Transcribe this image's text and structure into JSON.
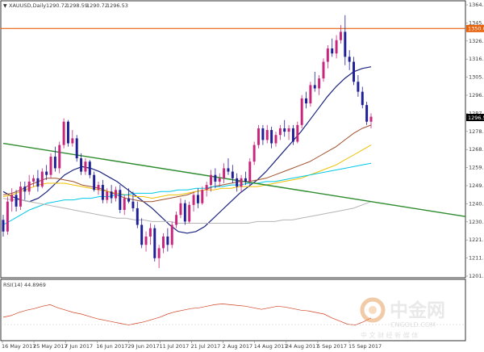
{
  "window": {
    "symbol_title": "XAUUSD,Daily",
    "ohlc": [
      "1290.72",
      "1298.59",
      "1290.72",
      "1296.53"
    ]
  },
  "indicator": {
    "label": "RSI(14) 44.8969"
  },
  "watermark": {
    "brand_text": "中金网",
    "domain_text": "CNGOLD.COM",
    "tagline_text": "中 文 财 经 新 媒 体"
  },
  "colors": {
    "up_candle": "#c8267d",
    "down_candle": "#1e1e96",
    "ma_dark_blue": "#1a237e",
    "ma_brown": "#a0522d",
    "ma_yellow": "#f0c000",
    "ma_cyan": "#00c8e6",
    "ma_grey": "#b4b4b4",
    "trend_green": "#2e8b2e",
    "resistance_orange": "#e8620c",
    "rsi_line": "#d04020"
  },
  "chart_data": {
    "type": "candlestick",
    "title": "XAUUSD,Daily",
    "price_axis": {
      "ticks": [
        "1364.70",
        "1345.35",
        "1326.00",
        "1316.95",
        "1305.80",
        "1296.53",
        "1287.80",
        "1278.65",
        "1268.50",
        "1259.60",
        "1249.30",
        "1240.45",
        "1230.55",
        "1221.40",
        "1211.40",
        "1201.70"
      ],
      "current_price_label": "1296.53",
      "resistance_label": "1350.00",
      "ylim": [
        1201.7,
        1364.7
      ]
    },
    "date_axis": {
      "labels": [
        "16 May 2017",
        "25 May 2017",
        "7 Jun 2017",
        "16 Jun 2017",
        "29 Jun 2017",
        "11 Jul 2017",
        "21 Jul 2017",
        "2 Aug 2017",
        "14 Aug 2017",
        "24 Aug 2017",
        "5 Sep 2017",
        "15 Sep 2017"
      ]
    },
    "candles_ohlc": [
      [
        1235,
        1238,
        1225,
        1228
      ],
      [
        1228,
        1249,
        1226,
        1246
      ],
      [
        1246,
        1254,
        1240,
        1250
      ],
      [
        1250,
        1253,
        1240,
        1243
      ],
      [
        1243,
        1258,
        1241,
        1255
      ],
      [
        1255,
        1258,
        1247,
        1252
      ],
      [
        1252,
        1262,
        1250,
        1258
      ],
      [
        1258,
        1262,
        1255,
        1260
      ],
      [
        1260,
        1265,
        1252,
        1255
      ],
      [
        1255,
        1266,
        1254,
        1264
      ],
      [
        1264,
        1268,
        1259,
        1262
      ],
      [
        1262,
        1275,
        1260,
        1273
      ],
      [
        1273,
        1279,
        1264,
        1266
      ],
      [
        1266,
        1282,
        1263,
        1280
      ],
      [
        1280,
        1296,
        1278,
        1294
      ],
      [
        1294,
        1295,
        1279,
        1281
      ],
      [
        1281,
        1289,
        1279,
        1284
      ],
      [
        1284,
        1286,
        1270,
        1272
      ],
      [
        1272,
        1275,
        1262,
        1264
      ],
      [
        1264,
        1272,
        1262,
        1270
      ],
      [
        1270,
        1271,
        1260,
        1262
      ],
      [
        1262,
        1264,
        1252,
        1253
      ],
      [
        1253,
        1258,
        1250,
        1256
      ],
      [
        1256,
        1259,
        1245,
        1247
      ],
      [
        1247,
        1254,
        1245,
        1252
      ],
      [
        1252,
        1256,
        1245,
        1248
      ],
      [
        1248,
        1255,
        1246,
        1253
      ],
      [
        1253,
        1256,
        1239,
        1241
      ],
      [
        1241,
        1250,
        1238,
        1248
      ],
      [
        1248,
        1254,
        1245,
        1246
      ],
      [
        1246,
        1252,
        1240,
        1242
      ],
      [
        1242,
        1246,
        1230,
        1232
      ],
      [
        1232,
        1236,
        1218,
        1220
      ],
      [
        1220,
        1228,
        1216,
        1225
      ],
      [
        1225,
        1233,
        1220,
        1230
      ],
      [
        1230,
        1232,
        1210,
        1212
      ],
      [
        1212,
        1220,
        1206,
        1218
      ],
      [
        1218,
        1227,
        1215,
        1225
      ],
      [
        1225,
        1230,
        1216,
        1220
      ],
      [
        1220,
        1234,
        1218,
        1232
      ],
      [
        1232,
        1240,
        1230,
        1238
      ],
      [
        1238,
        1248,
        1236,
        1245
      ],
      [
        1245,
        1247,
        1232,
        1234
      ],
      [
        1234,
        1246,
        1233,
        1244
      ],
      [
        1244,
        1252,
        1240,
        1250
      ],
      [
        1250,
        1254,
        1242,
        1245
      ],
      [
        1245,
        1255,
        1244,
        1253
      ],
      [
        1253,
        1258,
        1249,
        1256
      ],
      [
        1256,
        1265,
        1252,
        1262
      ],
      [
        1262,
        1266,
        1254,
        1258
      ],
      [
        1258,
        1263,
        1255,
        1260
      ],
      [
        1260,
        1269,
        1257,
        1266
      ],
      [
        1266,
        1272,
        1262,
        1264
      ],
      [
        1264,
        1268,
        1257,
        1260
      ],
      [
        1260,
        1263,
        1252,
        1255
      ],
      [
        1255,
        1262,
        1252,
        1260
      ],
      [
        1260,
        1264,
        1256,
        1258
      ],
      [
        1258,
        1272,
        1256,
        1270
      ],
      [
        1270,
        1282,
        1268,
        1280
      ],
      [
        1280,
        1292,
        1278,
        1290
      ],
      [
        1290,
        1292,
        1280,
        1283
      ],
      [
        1283,
        1292,
        1281,
        1289
      ],
      [
        1289,
        1291,
        1278,
        1281
      ],
      [
        1281,
        1288,
        1279,
        1286
      ],
      [
        1286,
        1292,
        1283,
        1290
      ],
      [
        1290,
        1295,
        1285,
        1288
      ],
      [
        1288,
        1292,
        1283,
        1290
      ],
      [
        1290,
        1292,
        1280,
        1282
      ],
      [
        1282,
        1294,
        1281,
        1292
      ],
      [
        1292,
        1310,
        1290,
        1308
      ],
      [
        1308,
        1312,
        1302,
        1305
      ],
      [
        1305,
        1318,
        1303,
        1316
      ],
      [
        1316,
        1324,
        1312,
        1314
      ],
      [
        1314,
        1322,
        1310,
        1320
      ],
      [
        1320,
        1332,
        1318,
        1330
      ],
      [
        1330,
        1340,
        1326,
        1338
      ],
      [
        1338,
        1344,
        1333,
        1335
      ],
      [
        1335,
        1346,
        1332,
        1343
      ],
      [
        1343,
        1352,
        1341,
        1348
      ],
      [
        1348,
        1358,
        1328,
        1333
      ],
      [
        1333,
        1337,
        1325,
        1330
      ],
      [
        1330,
        1333,
        1316,
        1318
      ],
      [
        1318,
        1322,
        1309,
        1312
      ],
      [
        1312,
        1315,
        1302,
        1304
      ],
      [
        1304,
        1306,
        1292,
        1294
      ],
      [
        1294,
        1299,
        1290,
        1297
      ]
    ],
    "moving_averages": [
      {
        "color": "dark blue",
        "values": [
          1252,
          1249,
          1247,
          1246,
          1248,
          1252,
          1257,
          1262,
          1265,
          1267,
          1266,
          1264,
          1261,
          1258,
          1254,
          1250,
          1246,
          1242,
          1237,
          1232,
          1228,
          1227,
          1228,
          1231,
          1236,
          1241,
          1246,
          1251,
          1255,
          1259,
          1264,
          1270,
          1276,
          1282,
          1288,
          1295,
          1302,
          1309,
          1315,
          1320,
          1324,
          1326,
          1327
        ]
      },
      {
        "color": "brown",
        "values": [
          1250,
          1251,
          1253,
          1256,
          1258,
          1260,
          1260,
          1259,
          1258,
          1256,
          1255,
          1254,
          1252,
          1250,
          1248,
          1247,
          1246,
          1246,
          1247,
          1248,
          1249,
          1250,
          1252,
          1253,
          1255,
          1256,
          1257,
          1258,
          1258,
          1259,
          1260,
          1262,
          1264,
          1266,
          1268,
          1270,
          1273,
          1276,
          1279,
          1283,
          1287,
          1290,
          1292
        ]
      },
      {
        "color": "yellow",
        "values": [
          1249,
          1250,
          1252,
          1254,
          1256,
          1257,
          1257,
          1257,
          1256,
          1255,
          1254,
          1253,
          1252,
          1251,
          1250,
          1249,
          1249,
          1248,
          1249,
          1250,
          1250,
          1251,
          1252,
          1253,
          1253,
          1254,
          1254,
          1255,
          1255,
          1255,
          1256,
          1257,
          1258,
          1259,
          1260,
          1262,
          1264,
          1266,
          1268,
          1271,
          1274,
          1277,
          1280
        ]
      },
      {
        "color": "cyan",
        "values": [
          1232,
          1235,
          1238,
          1241,
          1243,
          1245,
          1246,
          1247,
          1247,
          1248,
          1248,
          1249,
          1249,
          1250,
          1250,
          1251,
          1251,
          1251,
          1252,
          1252,
          1253,
          1253,
          1254,
          1254,
          1255,
          1255,
          1256,
          1256,
          1257,
          1257,
          1258,
          1258,
          1259,
          1260,
          1261,
          1262,
          1263,
          1264,
          1265,
          1266,
          1267,
          1268,
          1269
        ]
      },
      {
        "color": "grey",
        "values": [
          1248,
          1247,
          1247,
          1246,
          1245,
          1244,
          1243,
          1242,
          1241,
          1240,
          1239,
          1238,
          1237,
          1236,
          1236,
          1235,
          1235,
          1234,
          1234,
          1234,
          1233,
          1233,
          1233,
          1233,
          1233,
          1233,
          1233,
          1233,
          1233,
          1234,
          1234,
          1234,
          1235,
          1235,
          1236,
          1237,
          1238,
          1239,
          1240,
          1241,
          1242,
          1244,
          1246
        ]
      }
    ],
    "trend_line": {
      "from": {
        "date_index": 0,
        "price": 1281
      },
      "to": {
        "date_index": 85,
        "price": 1237
      }
    },
    "resistance_line": {
      "price": 1350
    },
    "rsi": {
      "values": [
        46,
        48,
        52,
        55,
        57,
        60,
        62,
        58,
        55,
        52,
        50,
        47,
        44,
        42,
        40,
        38,
        36,
        38,
        40,
        43,
        46,
        50,
        53,
        55,
        57,
        58,
        60,
        62,
        63,
        62,
        61,
        60,
        58,
        56,
        58,
        60,
        59,
        57,
        55,
        54,
        52,
        50,
        45,
        41,
        37,
        36,
        40,
        45
      ]
    }
  }
}
